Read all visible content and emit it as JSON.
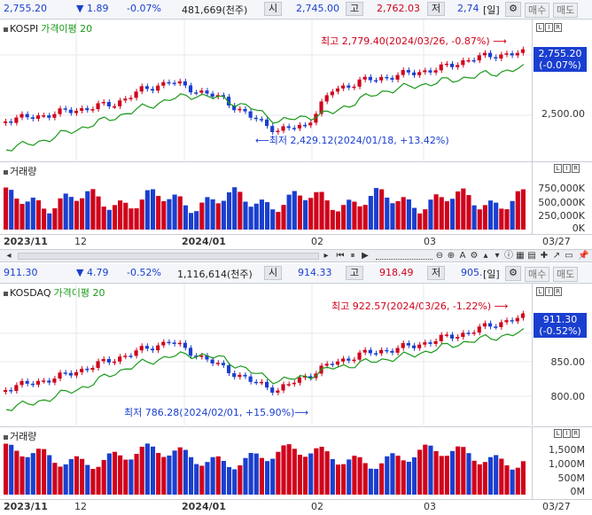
{
  "kospi": {
    "header": {
      "price": "2,755.20",
      "change_arrow": "▼",
      "change": "1.89",
      "change_pct": "-0.07%",
      "volume": "481,669(천주)",
      "open_label": "시",
      "open": "2,745.00",
      "high_label": "고",
      "high": "2,762.03",
      "low_label": "저",
      "low": "2,74",
      "period": "[일]",
      "buy_label": "매수",
      "sell_label": "매도"
    },
    "chart_title": "KOSPI",
    "ma_label": "가격이평 20",
    "high_annotation": "최고 2,779.40(2024/03/26, -0.87%)",
    "low_annotation": "최저 2,429.12(2024/01/18, +13.42%)",
    "price_box": [
      "2,755.20",
      "(-0.07%)"
    ],
    "y_ticks": [
      "2,500.00"
    ],
    "volume_title": "거래량",
    "vol_ticks": [
      "750,000K",
      "500,000K",
      "250,000K",
      "0K"
    ],
    "dates": [
      "2023/11",
      "12",
      "2024/01",
      "02",
      "03",
      "03/27"
    ]
  },
  "kosdaq": {
    "header": {
      "price": "911.30",
      "change_arrow": "▼",
      "change": "4.79",
      "change_pct": "-0.52%",
      "volume": "1,116,614(천주)",
      "open_label": "시",
      "open": "914.33",
      "high_label": "고",
      "high": "918.49",
      "low_label": "저",
      "low": "905.",
      "period": "[일]",
      "buy_label": "매수",
      "sell_label": "매도"
    },
    "chart_title": "KOSDAQ",
    "ma_label": "가격이평 20",
    "high_annotation": "최고 922.57(2024/03/26, -1.22%)",
    "low_annotation": "최저 786.28(2024/02/01, +15.90%)",
    "price_box": [
      "911.30",
      "(-0.52%)"
    ],
    "y_ticks": [
      "850.00",
      "800.00"
    ],
    "volume_title": "거래량",
    "vol_ticks": [
      "1,500M",
      "1,000M",
      "500M",
      "0M"
    ],
    "dates": [
      "2023/11",
      "12",
      "2024/01",
      "02",
      "03",
      "03/27"
    ]
  },
  "colors": {
    "up": "#d0021b",
    "down": "#1a3fd0",
    "ma": "#1a9a1a"
  }
}
